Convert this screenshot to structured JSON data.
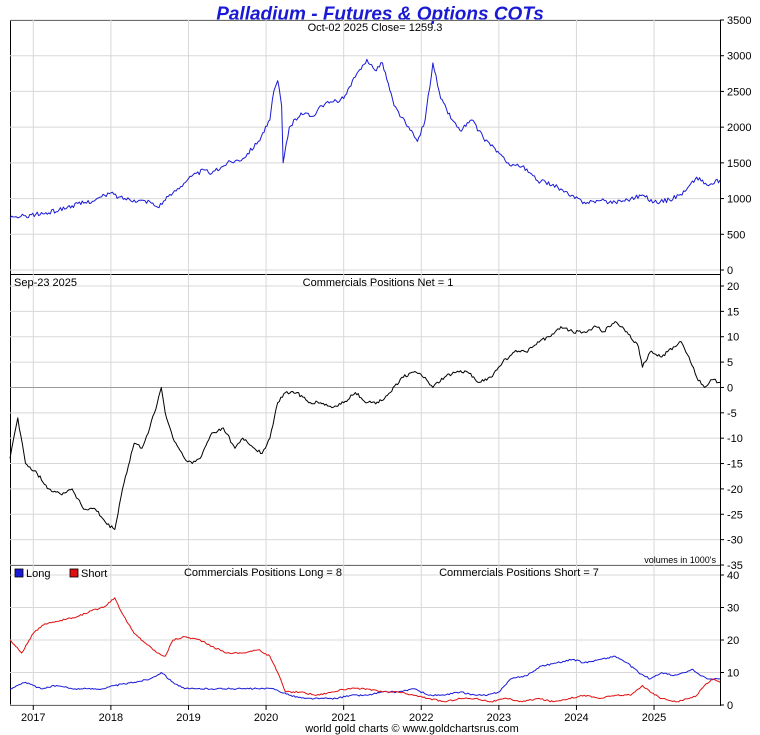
{
  "title": "Palladium - Futures & Options COTs",
  "footer": "world gold charts © www.goldchartsrus.com",
  "colors": {
    "price": "#1a1ad6",
    "net": "#000000",
    "long": "#1a1ad6",
    "short": "#e01010",
    "title": "#1a1ad6"
  },
  "x_axis": {
    "labels": [
      "2017",
      "2018",
      "2019",
      "2020",
      "2021",
      "2022",
      "2023",
      "2024",
      "2025"
    ],
    "start_year": 2016.7,
    "end_year": 2025.85
  },
  "chart_data": [
    {
      "id": "price",
      "type": "line",
      "header": "Oct-02  2025   Close= 1259.3",
      "ylim": [
        0,
        3500
      ],
      "yticks": [
        0,
        500,
        1000,
        1500,
        2000,
        2500,
        3000,
        3500
      ],
      "series": [
        {
          "name": "Palladium price",
          "points": [
            [
              2016.7,
              720
            ],
            [
              2016.9,
              760
            ],
            [
              2017.2,
              800
            ],
            [
              2017.5,
              900
            ],
            [
              2017.8,
              980
            ],
            [
              2018.0,
              1080
            ],
            [
              2018.1,
              1020
            ],
            [
              2018.3,
              980
            ],
            [
              2018.5,
              960
            ],
            [
              2018.6,
              880
            ],
            [
              2018.8,
              1080
            ],
            [
              2019.0,
              1280
            ],
            [
              2019.2,
              1400
            ],
            [
              2019.3,
              1350
            ],
            [
              2019.5,
              1500
            ],
            [
              2019.7,
              1560
            ],
            [
              2019.9,
              1800
            ],
            [
              2020.05,
              2100
            ],
            [
              2020.1,
              2500
            ],
            [
              2020.15,
              2650
            ],
            [
              2020.2,
              2300
            ],
            [
              2020.22,
              1500
            ],
            [
              2020.3,
              2000
            ],
            [
              2020.45,
              2200
            ],
            [
              2020.6,
              2150
            ],
            [
              2020.7,
              2300
            ],
            [
              2020.85,
              2350
            ],
            [
              2021.0,
              2400
            ],
            [
              2021.15,
              2700
            ],
            [
              2021.3,
              2950
            ],
            [
              2021.4,
              2800
            ],
            [
              2021.5,
              2900
            ],
            [
              2021.65,
              2300
            ],
            [
              2021.8,
              2050
            ],
            [
              2021.95,
              1800
            ],
            [
              2022.05,
              2100
            ],
            [
              2022.15,
              2900
            ],
            [
              2022.25,
              2400
            ],
            [
              2022.4,
              2100
            ],
            [
              2022.5,
              1950
            ],
            [
              2022.65,
              2100
            ],
            [
              2022.8,
              1850
            ],
            [
              2022.95,
              1700
            ],
            [
              2023.1,
              1500
            ],
            [
              2023.3,
              1450
            ],
            [
              2023.5,
              1250
            ],
            [
              2023.7,
              1200
            ],
            [
              2023.9,
              1050
            ],
            [
              2024.1,
              950
            ],
            [
              2024.3,
              970
            ],
            [
              2024.5,
              950
            ],
            [
              2024.7,
              1000
            ],
            [
              2024.85,
              1050
            ],
            [
              2025.0,
              950
            ],
            [
              2025.2,
              980
            ],
            [
              2025.4,
              1100
            ],
            [
              2025.55,
              1300
            ],
            [
              2025.7,
              1180
            ],
            [
              2025.85,
              1259
            ]
          ]
        }
      ]
    },
    {
      "id": "net",
      "type": "line",
      "header_left": "Sep-23  2025",
      "header": "Commercials Positions Net = 1",
      "note": "volumes in 1000's",
      "ylim": [
        -35,
        20
      ],
      "yticks": [
        -35,
        -30,
        -25,
        -20,
        -15,
        -10,
        -5,
        0,
        5,
        10,
        15,
        20
      ],
      "series": [
        {
          "name": "Commercials Net",
          "points": [
            [
              2016.7,
              -14
            ],
            [
              2016.8,
              -6
            ],
            [
              2016.9,
              -15
            ],
            [
              2017.05,
              -17
            ],
            [
              2017.2,
              -20
            ],
            [
              2017.35,
              -21
            ],
            [
              2017.5,
              -20
            ],
            [
              2017.65,
              -24
            ],
            [
              2017.8,
              -24
            ],
            [
              2017.95,
              -27
            ],
            [
              2018.05,
              -28
            ],
            [
              2018.15,
              -20
            ],
            [
              2018.3,
              -11
            ],
            [
              2018.4,
              -12
            ],
            [
              2018.5,
              -8
            ],
            [
              2018.6,
              -3
            ],
            [
              2018.65,
              0
            ],
            [
              2018.7,
              -5
            ],
            [
              2018.8,
              -10
            ],
            [
              2018.95,
              -14
            ],
            [
              2019.05,
              -15
            ],
            [
              2019.15,
              -14
            ],
            [
              2019.3,
              -9
            ],
            [
              2019.45,
              -8
            ],
            [
              2019.6,
              -12
            ],
            [
              2019.7,
              -10
            ],
            [
              2019.85,
              -12
            ],
            [
              2019.95,
              -13
            ],
            [
              2020.05,
              -10
            ],
            [
              2020.15,
              -3
            ],
            [
              2020.25,
              -1
            ],
            [
              2020.4,
              -1
            ],
            [
              2020.55,
              -3
            ],
            [
              2020.7,
              -3
            ],
            [
              2020.85,
              -4
            ],
            [
              2021.0,
              -3
            ],
            [
              2021.15,
              -1
            ],
            [
              2021.3,
              -3
            ],
            [
              2021.45,
              -3
            ],
            [
              2021.6,
              -1
            ],
            [
              2021.75,
              2
            ],
            [
              2021.9,
              3
            ],
            [
              2022.05,
              2
            ],
            [
              2022.15,
              0
            ],
            [
              2022.3,
              2
            ],
            [
              2022.45,
              3
            ],
            [
              2022.6,
              3
            ],
            [
              2022.75,
              1
            ],
            [
              2022.9,
              2
            ],
            [
              2023.05,
              5
            ],
            [
              2023.2,
              7
            ],
            [
              2023.35,
              7
            ],
            [
              2023.5,
              9
            ],
            [
              2023.65,
              10
            ],
            [
              2023.8,
              12
            ],
            [
              2023.95,
              11
            ],
            [
              2024.1,
              11
            ],
            [
              2024.25,
              12
            ],
            [
              2024.35,
              11
            ],
            [
              2024.5,
              13
            ],
            [
              2024.65,
              11
            ],
            [
              2024.8,
              8
            ],
            [
              2024.85,
              4
            ],
            [
              2024.95,
              7
            ],
            [
              2025.1,
              6
            ],
            [
              2025.25,
              8
            ],
            [
              2025.35,
              9
            ],
            [
              2025.45,
              6
            ],
            [
              2025.55,
              2
            ],
            [
              2025.65,
              0
            ],
            [
              2025.75,
              1.5
            ],
            [
              2025.85,
              1
            ]
          ]
        }
      ]
    },
    {
      "id": "positions",
      "type": "line",
      "legend": [
        "Long",
        "Short"
      ],
      "header_long": "Commercials Positions Long = 8",
      "header_short": "Commercials Positions Short = 7",
      "ylim": [
        0,
        40
      ],
      "yticks": [
        0,
        10,
        20,
        30,
        40
      ],
      "series": [
        {
          "name": "Long",
          "points": [
            [
              2016.7,
              5
            ],
            [
              2016.9,
              7
            ],
            [
              2017.1,
              5
            ],
            [
              2017.3,
              6
            ],
            [
              2017.5,
              5
            ],
            [
              2017.7,
              5
            ],
            [
              2017.9,
              5
            ],
            [
              2018.05,
              6
            ],
            [
              2018.3,
              7
            ],
            [
              2018.5,
              8
            ],
            [
              2018.65,
              10
            ],
            [
              2018.8,
              7
            ],
            [
              2018.95,
              5
            ],
            [
              2019.1,
              5
            ],
            [
              2019.3,
              5
            ],
            [
              2019.5,
              5
            ],
            [
              2019.7,
              5
            ],
            [
              2019.9,
              5
            ],
            [
              2020.1,
              5
            ],
            [
              2020.3,
              3
            ],
            [
              2020.5,
              2
            ],
            [
              2020.7,
              2
            ],
            [
              2020.9,
              2
            ],
            [
              2021.1,
              3
            ],
            [
              2021.3,
              3
            ],
            [
              2021.5,
              4
            ],
            [
              2021.7,
              4
            ],
            [
              2021.9,
              5
            ],
            [
              2022.1,
              3
            ],
            [
              2022.3,
              3
            ],
            [
              2022.5,
              4
            ],
            [
              2022.7,
              3
            ],
            [
              2022.85,
              3
            ],
            [
              2023.0,
              4
            ],
            [
              2023.15,
              8
            ],
            [
              2023.35,
              9
            ],
            [
              2023.55,
              12
            ],
            [
              2023.75,
              13
            ],
            [
              2023.95,
              14
            ],
            [
              2024.1,
              13
            ],
            [
              2024.3,
              14
            ],
            [
              2024.5,
              15
            ],
            [
              2024.65,
              13
            ],
            [
              2024.8,
              10
            ],
            [
              2024.95,
              8
            ],
            [
              2025.1,
              10
            ],
            [
              2025.25,
              9
            ],
            [
              2025.4,
              10
            ],
            [
              2025.5,
              11
            ],
            [
              2025.6,
              9
            ],
            [
              2025.7,
              8
            ],
            [
              2025.85,
              8
            ]
          ]
        },
        {
          "name": "Short",
          "points": [
            [
              2016.7,
              20
            ],
            [
              2016.85,
              16
            ],
            [
              2017.0,
              22
            ],
            [
              2017.15,
              25
            ],
            [
              2017.35,
              26
            ],
            [
              2017.55,
              27
            ],
            [
              2017.75,
              29
            ],
            [
              2017.9,
              30
            ],
            [
              2018.05,
              33
            ],
            [
              2018.15,
              28
            ],
            [
              2018.3,
              22
            ],
            [
              2018.45,
              19
            ],
            [
              2018.6,
              16
            ],
            [
              2018.7,
              15
            ],
            [
              2018.8,
              20
            ],
            [
              2018.95,
              21
            ],
            [
              2019.15,
              20
            ],
            [
              2019.3,
              18
            ],
            [
              2019.5,
              16
            ],
            [
              2019.7,
              16
            ],
            [
              2019.9,
              17
            ],
            [
              2020.05,
              15
            ],
            [
              2020.15,
              10
            ],
            [
              2020.25,
              4
            ],
            [
              2020.45,
              4
            ],
            [
              2020.65,
              3
            ],
            [
              2020.85,
              4
            ],
            [
              2021.05,
              5
            ],
            [
              2021.3,
              5
            ],
            [
              2021.5,
              4
            ],
            [
              2021.7,
              4
            ],
            [
              2021.9,
              3
            ],
            [
              2022.1,
              2
            ],
            [
              2022.3,
              1
            ],
            [
              2022.5,
              2
            ],
            [
              2022.7,
              2
            ],
            [
              2022.9,
              1
            ],
            [
              2023.1,
              2
            ],
            [
              2023.3,
              1
            ],
            [
              2023.5,
              2
            ],
            [
              2023.7,
              1
            ],
            [
              2023.9,
              2
            ],
            [
              2024.1,
              3
            ],
            [
              2024.3,
              2
            ],
            [
              2024.5,
              3
            ],
            [
              2024.7,
              3
            ],
            [
              2024.85,
              6
            ],
            [
              2024.95,
              4
            ],
            [
              2025.1,
              2
            ],
            [
              2025.3,
              1
            ],
            [
              2025.45,
              2
            ],
            [
              2025.55,
              3
            ],
            [
              2025.65,
              6
            ],
            [
              2025.75,
              8
            ],
            [
              2025.85,
              7
            ]
          ]
        }
      ]
    }
  ]
}
